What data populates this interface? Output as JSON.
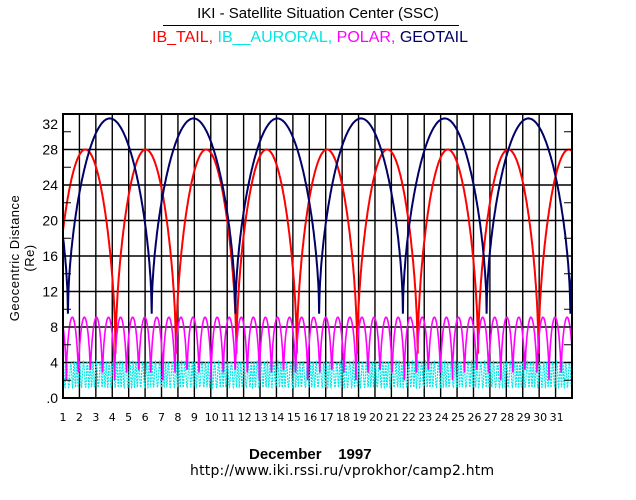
{
  "header": {
    "title": "IKI - Satellite Situation Center (SSC)"
  },
  "footer": {
    "month": "December",
    "year": "1997",
    "url": "http://www.iki.rssi.ru/vprokhor/camp2.htm"
  },
  "chart_data": {
    "type": "line",
    "title": "IKI - Satellite Situation Center (SSC)",
    "xlabel": "December 1997",
    "ylabel": "Geocentric Distance (Re)",
    "xlim": [
      1,
      32
    ],
    "ylim": [
      0,
      32
    ],
    "grid": true,
    "x_ticks": [
      "1",
      "2",
      "3",
      "4",
      "5",
      "6",
      "7",
      "8",
      "9",
      "10",
      "11",
      "12",
      "13",
      "14",
      "15",
      "16",
      "17",
      "18",
      "19",
      "20",
      "21",
      "22",
      "23",
      "24",
      "25",
      "26",
      "27",
      "28",
      "29",
      "30",
      "31"
    ],
    "y_ticks": [
      ".0",
      "4",
      "8",
      "12",
      "16",
      "20",
      "24",
      "28",
      "32"
    ],
    "y_tick_values": [
      0,
      4,
      8,
      12,
      16,
      20,
      24,
      28,
      32
    ],
    "legend_position": "top",
    "series": [
      {
        "name": "IB_TAIL",
        "color": "#ff0000",
        "model": "periodic",
        "min": 5.0,
        "max": 28.0,
        "period_days": 3.68,
        "first_min_day": 4.2,
        "start_value": 16.0,
        "end_value": 24.5
      },
      {
        "name": "IB__AURORAL",
        "color": "#00e5e5",
        "model": "periodic",
        "min": 1.2,
        "max": 4.1,
        "period_days": 0.2,
        "first_min_day": 1.05
      },
      {
        "name": "POLAR",
        "color": "#ff00ff",
        "model": "periodic",
        "min": 2.0,
        "max": 9.1,
        "period_days": 0.735,
        "first_min_day": 1.2
      },
      {
        "name": "GEOTAIL",
        "color": "#000066",
        "model": "periodic",
        "min": 9.5,
        "max": 31.5,
        "period_days": 5.1,
        "first_min_day": 1.3,
        "start_value": 12.0,
        "end_value": 12.5
      }
    ]
  }
}
